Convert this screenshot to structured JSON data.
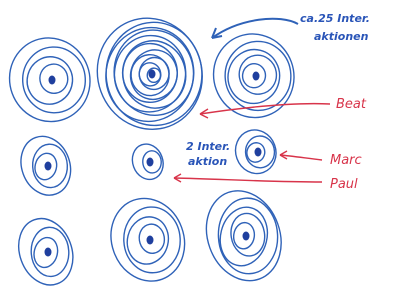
{
  "annotations": {
    "interactions_large": [
      "ca.25 Inter.",
      "aktionen"
    ],
    "interactions_small": [
      "2 Inter.",
      "aktion"
    ],
    "names": [
      "Beat",
      "Marc",
      "Paul"
    ]
  }
}
